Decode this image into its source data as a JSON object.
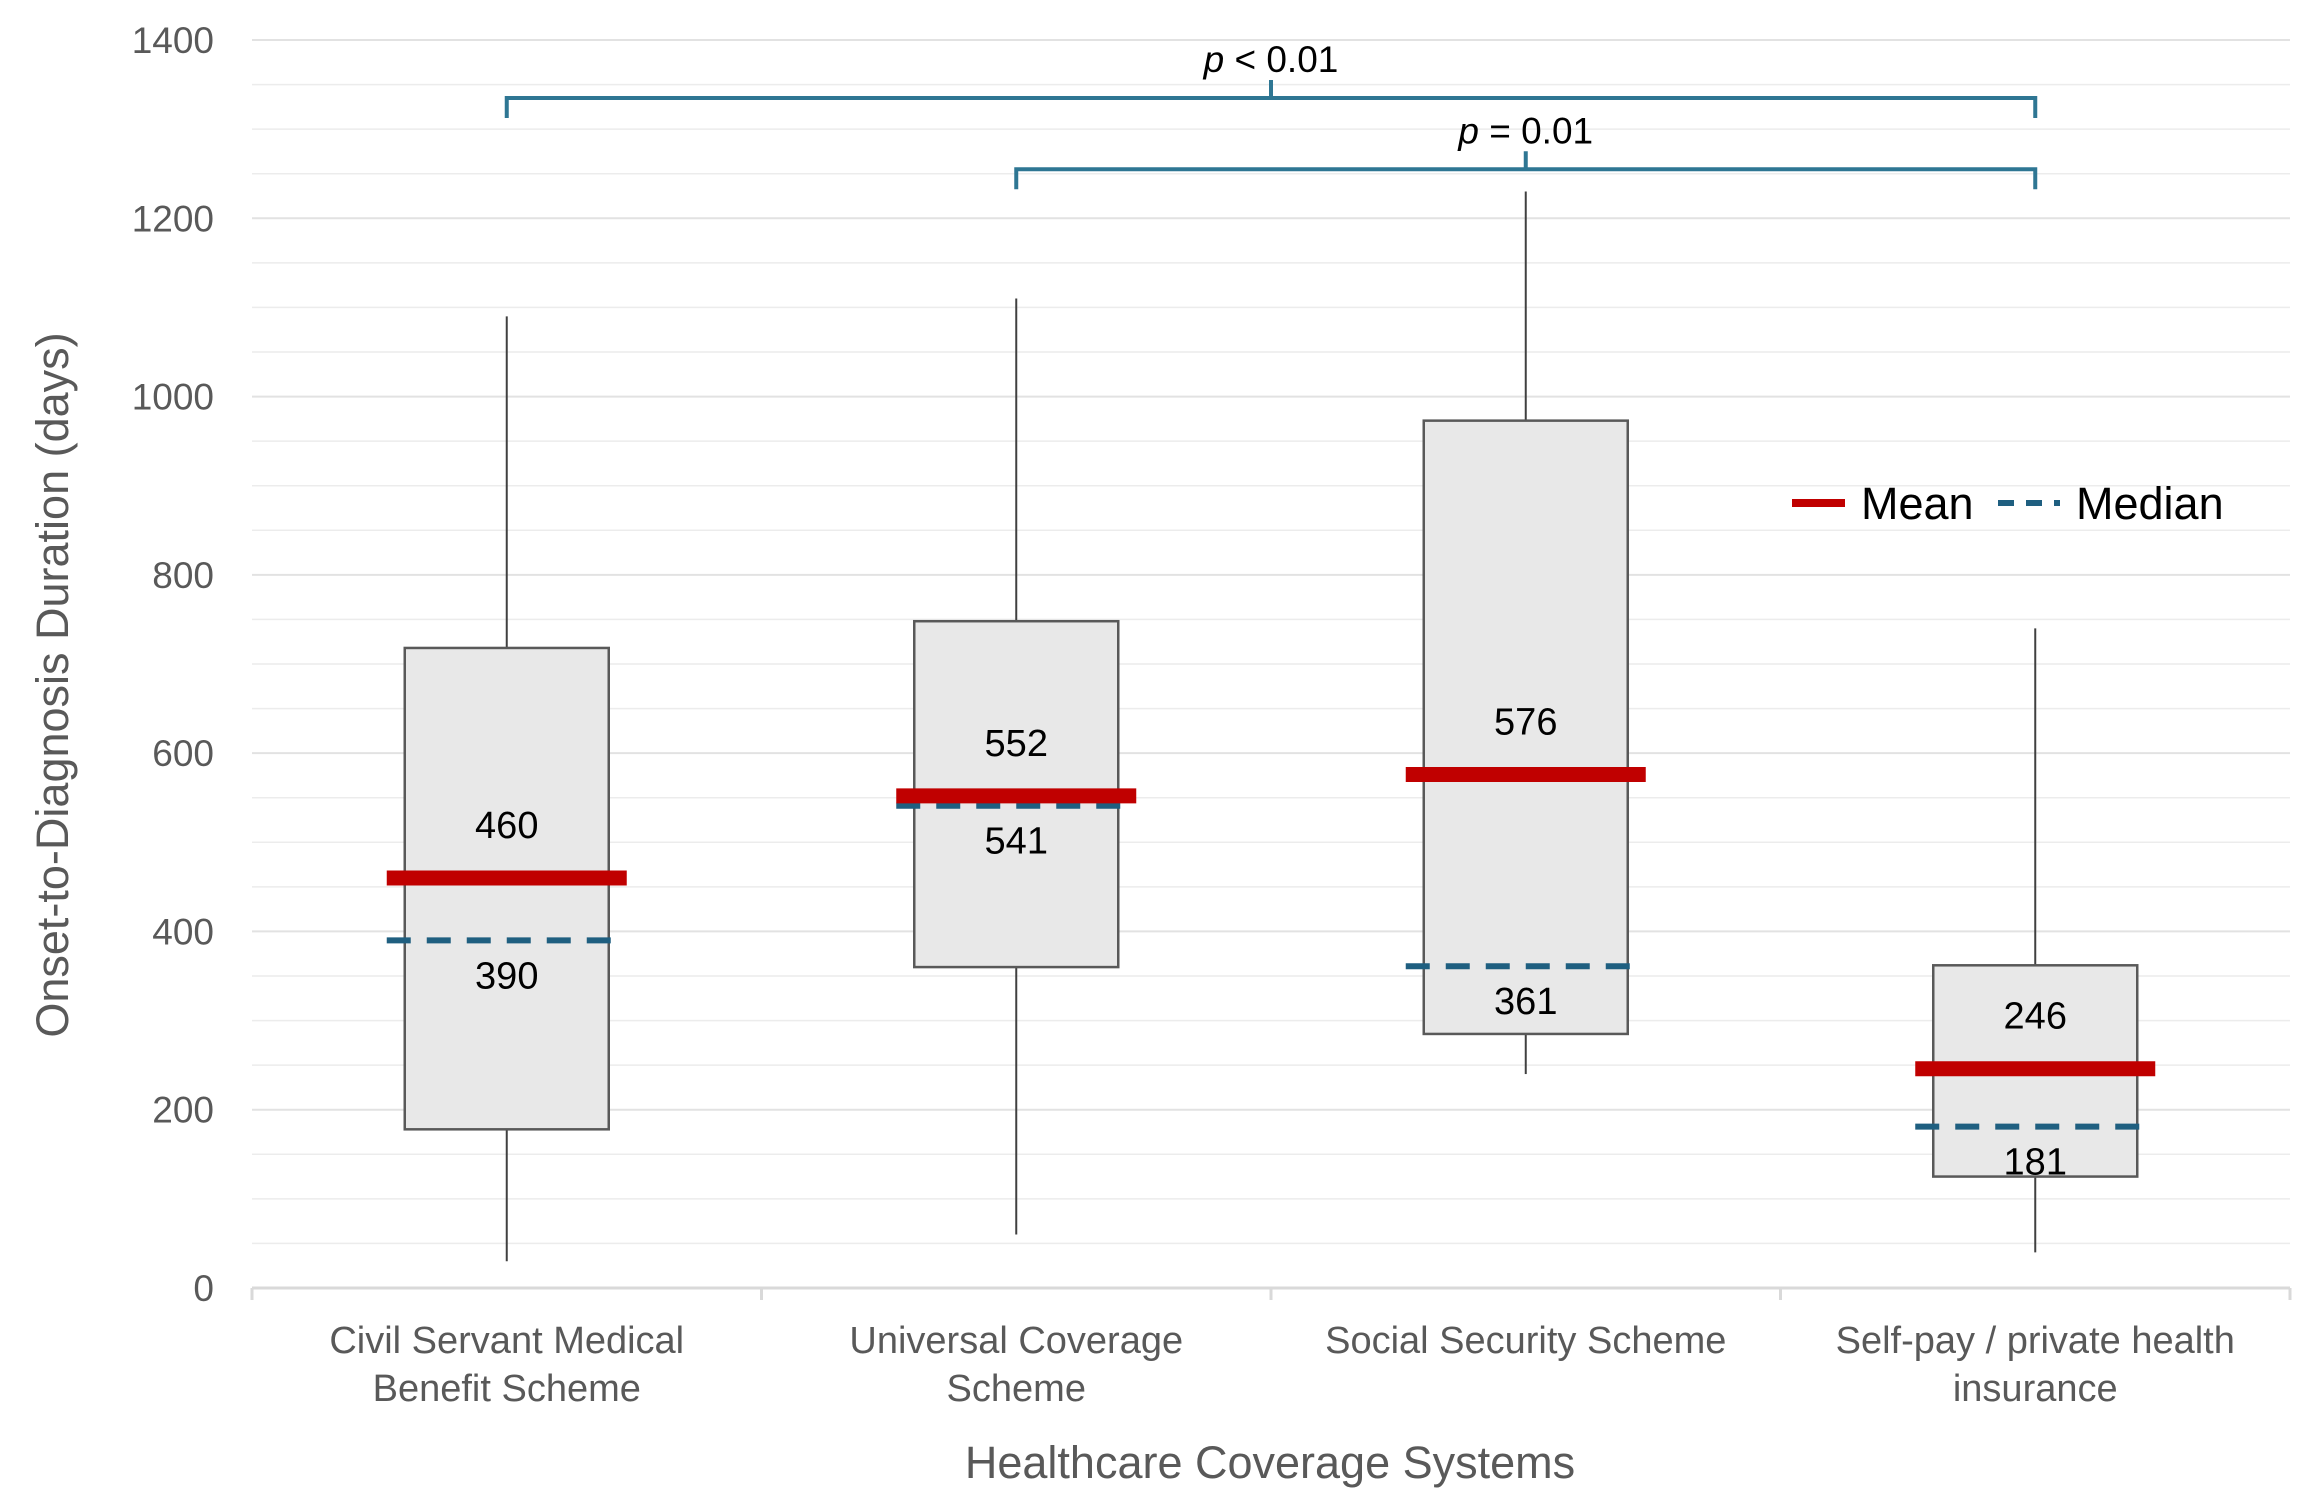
{
  "chart_data": {
    "type": "box",
    "title": "",
    "xlabel": "Healthcare Coverage Systems",
    "ylabel": "Onset-to-Diagnosis Duration (days)",
    "ylim": [
      0,
      1400
    ],
    "y_ticks": [
      0,
      200,
      400,
      600,
      800,
      1000,
      1200,
      1400
    ],
    "minor_grid_step": 50,
    "categories": [
      {
        "label_lines": [
          "Civil Servant Medical",
          "Benefit Scheme"
        ]
      },
      {
        "label_lines": [
          "Universal Coverage",
          "Scheme"
        ]
      },
      {
        "label_lines": [
          "Social Security Scheme"
        ]
      },
      {
        "label_lines": [
          "Self-pay / private health",
          "insurance"
        ]
      }
    ],
    "boxes": [
      {
        "min": 30,
        "q1": 178,
        "median": 390,
        "mean": 460,
        "q3": 718,
        "max": 1090,
        "mean_label": "460",
        "median_label": "390"
      },
      {
        "min": 60,
        "q1": 360,
        "median": 541,
        "mean": 552,
        "q3": 748,
        "max": 1110,
        "mean_label": "552",
        "median_label": "541"
      },
      {
        "min": 240,
        "q1": 285,
        "median": 361,
        "mean": 576,
        "q3": 973,
        "max": 1230,
        "mean_label": "576",
        "median_label": "361"
      },
      {
        "min": 40,
        "q1": 125,
        "median": 181,
        "mean": 246,
        "q3": 362,
        "max": 740,
        "mean_label": "246",
        "median_label": "181"
      }
    ],
    "significance": [
      {
        "from": 0,
        "to": 3,
        "y": 1335,
        "label": "< 0.01"
      },
      {
        "from": 1,
        "to": 3,
        "y": 1255,
        "label": "= 0.01"
      }
    ],
    "p_symbol": "p",
    "legend": {
      "position": "right",
      "mean": "Mean",
      "median": "Median"
    },
    "colors": {
      "mean": "#c00000",
      "median": "#1f5f80",
      "bracket": "#2e7693",
      "box_fill": "#e8e8e8",
      "box_stroke": "#595959",
      "grid": "#ececec",
      "axis": "#d9d9d9"
    }
  }
}
